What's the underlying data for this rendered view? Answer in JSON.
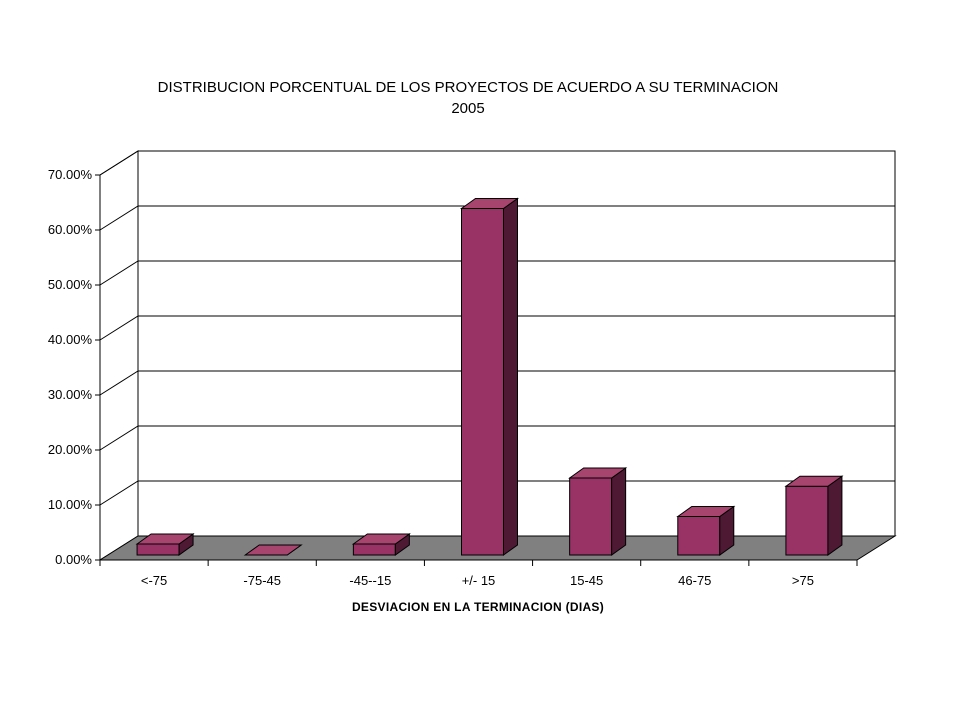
{
  "chart_data": {
    "type": "bar",
    "title": "DISTRIBUCION PORCENTUAL DE LOS PROYECTOS DE ACUERDO A SU TERMINACION",
    "subtitle": "2005",
    "xlabel": "DESVIACION EN LA TERMINACION (DIAS)",
    "ylabel": "",
    "categories": [
      "<-75",
      "-75-45",
      "-45--15",
      "+/- 15",
      "15-45",
      "46-75",
      ">75"
    ],
    "values": [
      2.0,
      0.0,
      2.0,
      63.0,
      14.0,
      7.0,
      12.5
    ],
    "y_ticks": [
      "0.00%",
      "10.00%",
      "20.00%",
      "30.00%",
      "40.00%",
      "50.00%",
      "60.00%",
      "70.00%"
    ],
    "ylim": [
      0,
      70
    ],
    "grid": true,
    "legend": "none",
    "three_d": true,
    "colors": {
      "bar_front": "#993366",
      "bar_top": "#a8456f",
      "bar_side": "#4d1933",
      "floor": "#808080",
      "gridline": "#000000",
      "wall": "#ffffff"
    }
  }
}
